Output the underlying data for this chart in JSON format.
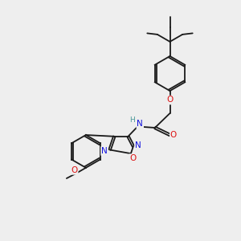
{
  "bg_color": "#eeeeee",
  "bond_color": "#1a1a1a",
  "atom_colors": {
    "O": "#dd1111",
    "N": "#1111dd",
    "C": "#1a1a1a",
    "H": "#4a9999"
  },
  "font_size": 7.0,
  "bond_width": 1.3,
  "dbo": 0.04
}
